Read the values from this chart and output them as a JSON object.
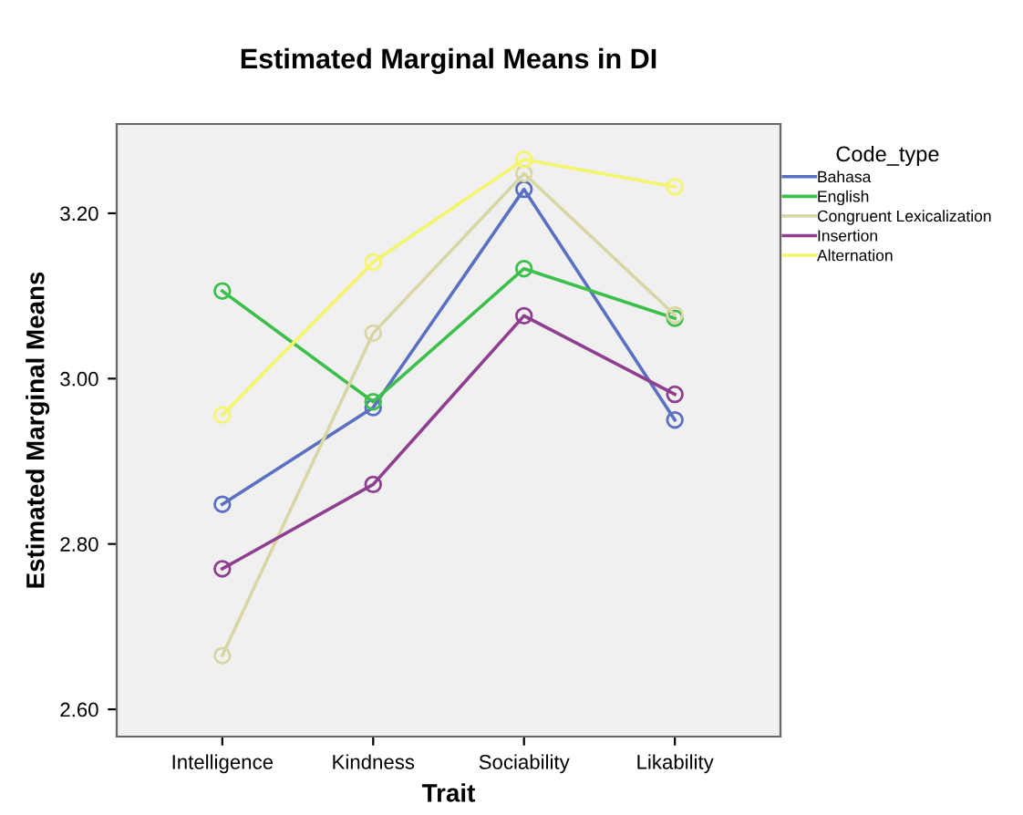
{
  "chart_data": {
    "type": "line",
    "title": "Estimated Marginal Means in DI",
    "xlabel": "Trait",
    "ylabel": "Estimated Marginal Means",
    "legend_title": "Code_type",
    "categories": [
      "Intelligence",
      "Kindness",
      "Sociability",
      "Likability"
    ],
    "series": [
      {
        "name": "Bahasa",
        "color": "#5a70c0",
        "values": [
          2.848,
          2.965,
          3.229,
          2.95
        ]
      },
      {
        "name": "English",
        "color": "#3dbf4c",
        "values": [
          3.106,
          2.972,
          3.133,
          3.073
        ]
      },
      {
        "name": "Congruent Lexicalization",
        "color": "#d9d6a6",
        "values": [
          2.665,
          3.055,
          3.248,
          3.077
        ]
      },
      {
        "name": "Insertion",
        "color": "#8f3f8f",
        "values": [
          2.77,
          2.872,
          3.076,
          2.981
        ]
      },
      {
        "name": "Alternation",
        "color": "#f5f56b",
        "values": [
          2.956,
          3.141,
          3.265,
          3.232
        ]
      }
    ],
    "ylim": [
      2.567,
      3.308
    ],
    "yticks": [
      {
        "value": 2.6,
        "label": "2.60"
      },
      {
        "value": 2.8,
        "label": "2.80"
      },
      {
        "value": 3.0,
        "label": "3.00"
      },
      {
        "value": 3.2,
        "label": "3.20"
      }
    ],
    "legend": "right",
    "marker": "circle",
    "line_style": "solid",
    "grid": false
  }
}
